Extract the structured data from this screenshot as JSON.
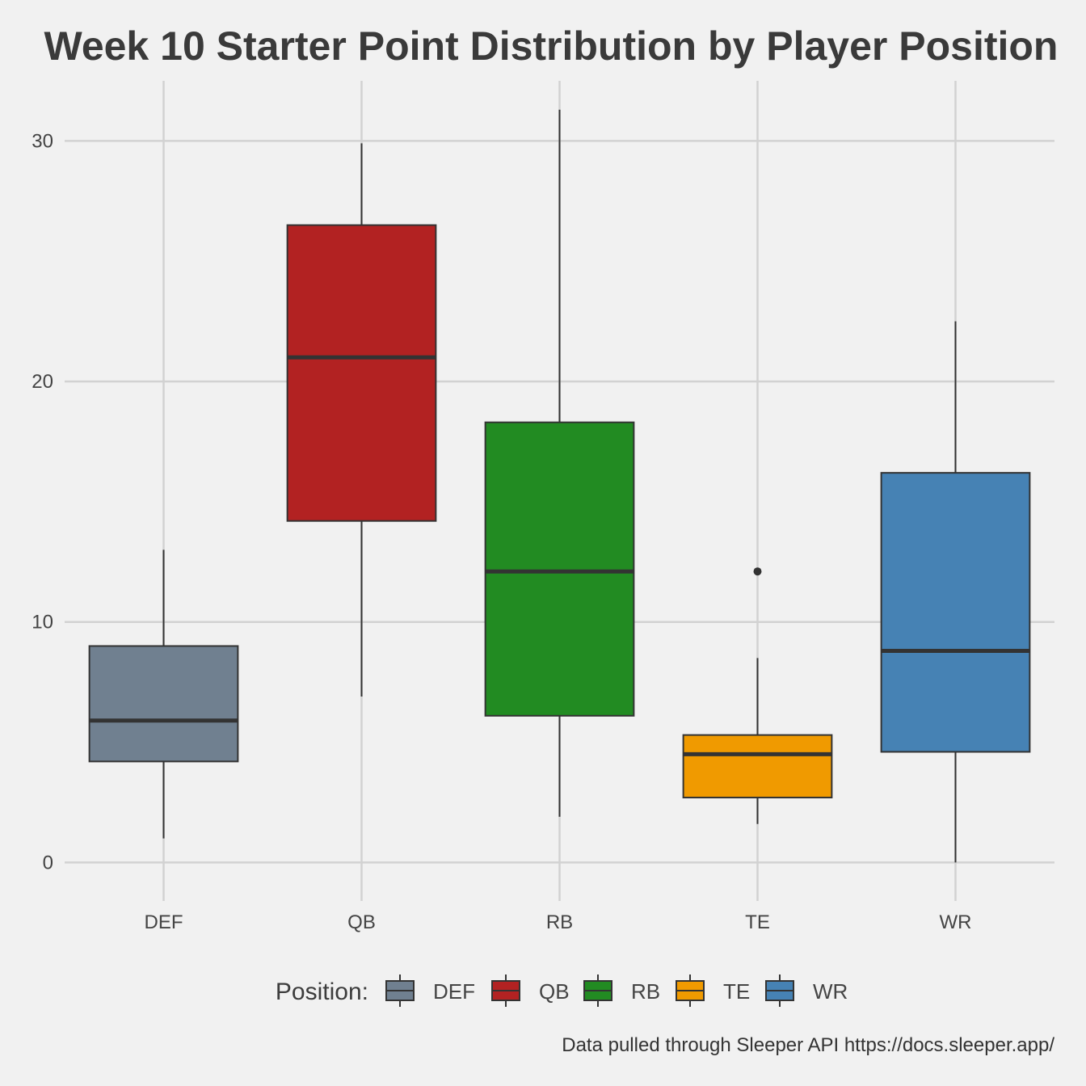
{
  "chart_data": {
    "type": "boxplot",
    "title": "Week 10 Starter Point Distribution by Player Position",
    "xlabel": "",
    "ylabel": "",
    "ylim": [
      -1.6,
      32.5
    ],
    "yticks": [
      0,
      10,
      20,
      30
    ],
    "grid": true,
    "legend_title": "Position:",
    "legend_position": "bottom",
    "caption": "Data pulled through Sleeper API https://docs.sleeper.app/",
    "categories": [
      "DEF",
      "QB",
      "RB",
      "TE",
      "WR"
    ],
    "series": [
      {
        "name": "DEF",
        "color": "#708090",
        "whisker_low": 1.0,
        "q1": 4.2,
        "median": 5.9,
        "q3": 9.0,
        "whisker_high": 13.0,
        "outliers": []
      },
      {
        "name": "QB",
        "color": "#b22222",
        "whisker_low": 6.9,
        "q1": 14.2,
        "median": 21.0,
        "q3": 26.5,
        "whisker_high": 29.9,
        "outliers": []
      },
      {
        "name": "RB",
        "color": "#228b22",
        "whisker_low": 1.9,
        "q1": 6.1,
        "median": 12.1,
        "q3": 18.3,
        "whisker_high": 31.3,
        "outliers": []
      },
      {
        "name": "TE",
        "color": "#f09a00",
        "whisker_low": 1.6,
        "q1": 2.7,
        "median": 4.5,
        "q3": 5.3,
        "whisker_high": 8.5,
        "outliers": [
          12.1
        ]
      },
      {
        "name": "WR",
        "color": "#4682b4",
        "whisker_low": 0.0,
        "q1": 4.6,
        "median": 8.8,
        "q3": 16.2,
        "whisker_high": 22.5,
        "outliers": []
      }
    ]
  }
}
